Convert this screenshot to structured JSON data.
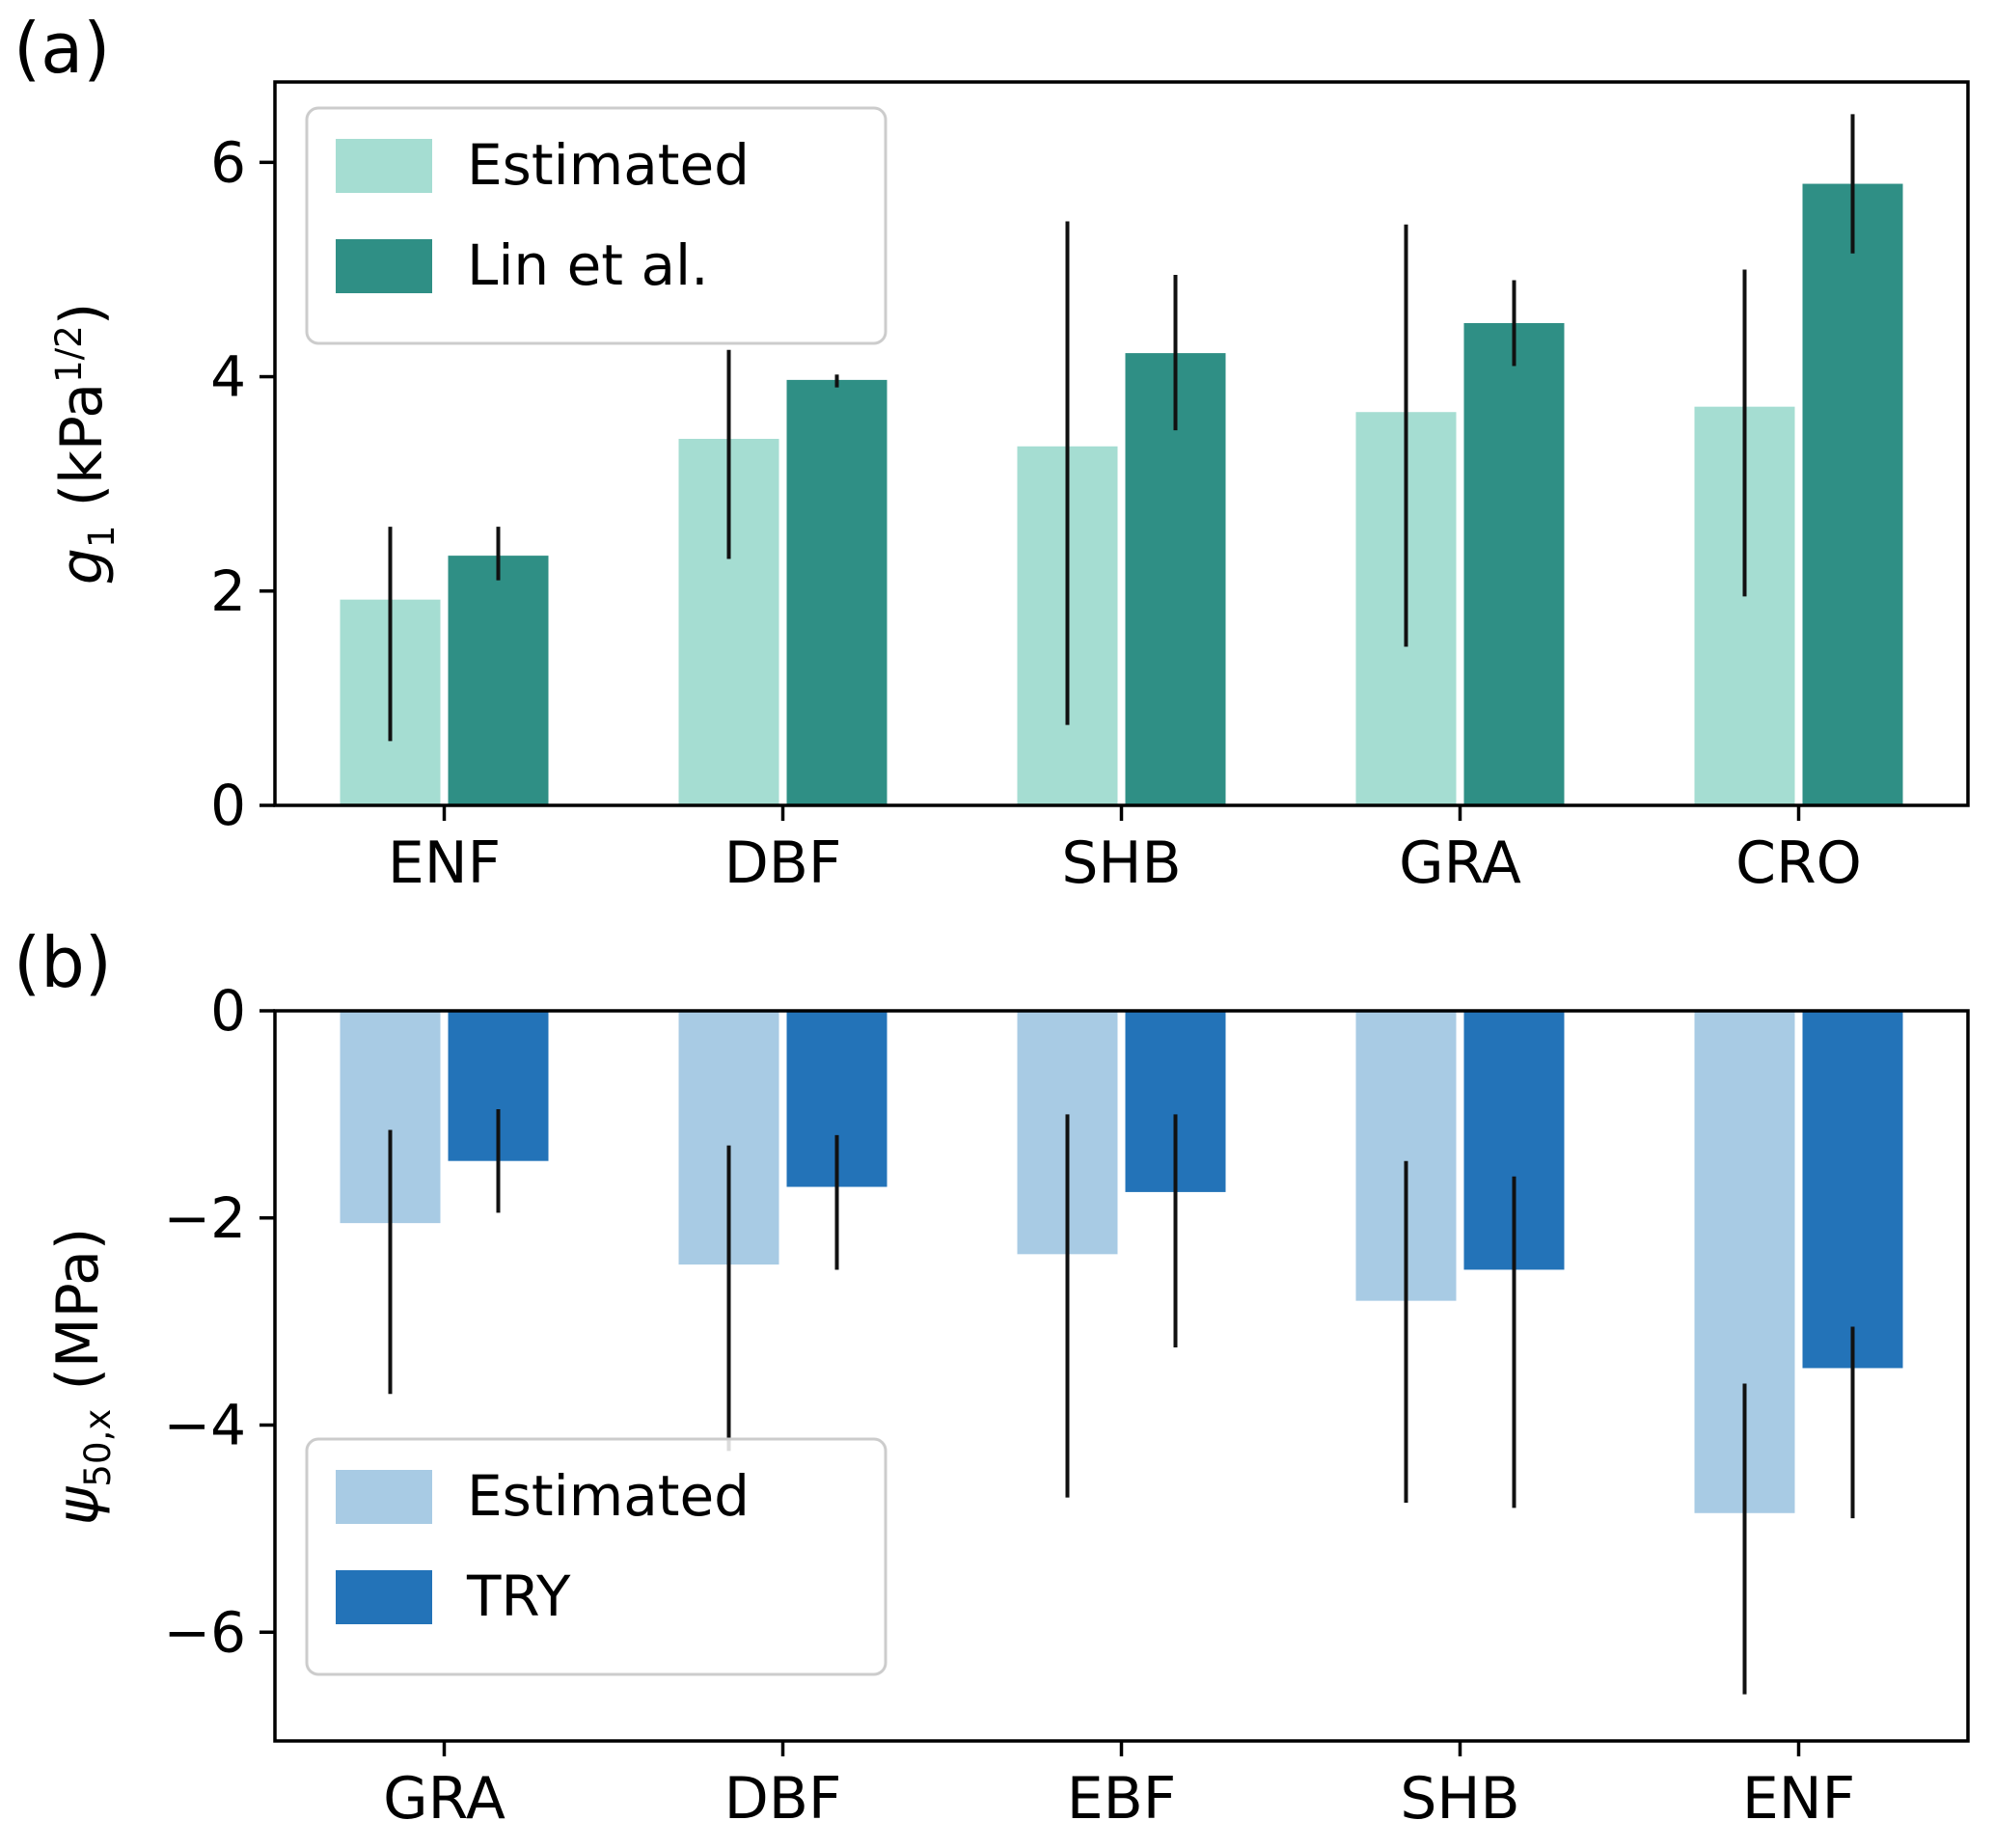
{
  "figure": {
    "background": "#ffffff",
    "error_bar_color": "#111111"
  },
  "chart_data": [
    {
      "type": "bar",
      "panel_label": "(a)",
      "title": "",
      "xlabel": "",
      "ylabel": {
        "pre": "g",
        "sub": "1",
        "mid": " (kPa",
        "sup": "1/2",
        "post": ")"
      },
      "ylabel_plain": "g1 (kPa^1/2)",
      "categories": [
        "ENF",
        "DBF",
        "SHB",
        "GRA",
        "CRO"
      ],
      "ylim": [
        0,
        6.75
      ],
      "ytick_values": [
        0,
        2,
        4,
        6
      ],
      "ytick_labels": [
        "0",
        "2",
        "4",
        "6"
      ],
      "legend_position": "top-left",
      "grid": false,
      "series": [
        {
          "name": "Estimated",
          "color": "#a5ddd2",
          "values": [
            1.92,
            3.42,
            3.35,
            3.67,
            3.72
          ],
          "err_low": [
            0.6,
            2.3,
            0.75,
            1.48,
            1.95
          ],
          "err_high": [
            2.6,
            4.25,
            5.45,
            5.42,
            5.0
          ]
        },
        {
          "name": "Lin et al.",
          "color": "#2f8f85",
          "values": [
            2.33,
            3.97,
            4.22,
            4.5,
            5.8
          ],
          "err_low": [
            2.1,
            3.9,
            3.5,
            4.1,
            5.15
          ],
          "err_high": [
            2.6,
            4.02,
            4.95,
            4.9,
            6.45
          ]
        }
      ]
    },
    {
      "type": "bar",
      "panel_label": "(b)",
      "title": "",
      "xlabel": "",
      "ylabel": {
        "pre": "ψ",
        "sub": "50,x",
        "mid": " (MPa",
        "sup": "",
        "post": ")"
      },
      "ylabel_plain": "psi_50,x (MPa)",
      "categories": [
        "GRA",
        "DBF",
        "EBF",
        "SHB",
        "ENF"
      ],
      "ylim": [
        -7.05,
        0
      ],
      "ytick_values": [
        0,
        -2,
        -4,
        -6
      ],
      "ytick_labels": [
        "0",
        "−2",
        "−4",
        "−6"
      ],
      "legend_position": "bottom-left",
      "grid": false,
      "series": [
        {
          "name": "Estimated",
          "color": "#a8cbe4",
          "values": [
            -2.05,
            -2.45,
            -2.35,
            -2.8,
            -4.85
          ],
          "err_low": [
            -3.7,
            -4.25,
            -4.7,
            -4.75,
            -6.6
          ],
          "err_high": [
            -1.15,
            -1.3,
            -1.0,
            -1.45,
            -3.6
          ]
        },
        {
          "name": "TRY",
          "color": "#2373b8",
          "values": [
            -1.45,
            -1.7,
            -1.75,
            -2.5,
            -3.45
          ],
          "err_low": [
            -1.95,
            -2.5,
            -3.25,
            -4.8,
            -4.9
          ],
          "err_high": [
            -0.95,
            -1.2,
            -1.0,
            -1.6,
            -3.05
          ]
        }
      ]
    }
  ]
}
